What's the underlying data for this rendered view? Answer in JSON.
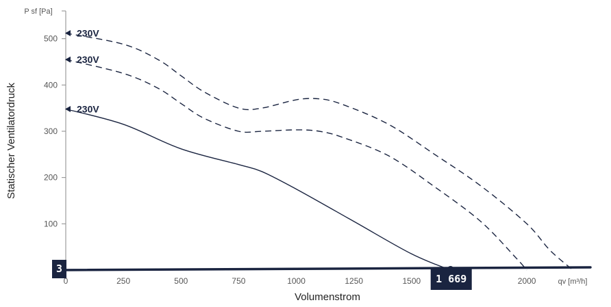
{
  "chart_data": {
    "type": "line",
    "xlabel": "Volumenstrom",
    "ylabel": "Statischer Ventilatordruck",
    "x_unit": "qv [m³/h]",
    "y_unit": "P sf [Pa]",
    "xlim": [
      0,
      2270
    ],
    "ylim": [
      0,
      560
    ],
    "x_ticks": [
      "0",
      "250",
      "500",
      "750",
      "1000",
      "1250",
      "1500",
      "2000"
    ],
    "y_ticks": [
      "0",
      "100",
      "200",
      "300",
      "400",
      "500"
    ],
    "series": [
      {
        "name": "230V",
        "style": "dashed",
        "x": [
          0,
          250,
          400,
          500,
          600,
          750,
          850,
          1000,
          1100,
          1200,
          1400,
          1600,
          1800,
          2000,
          2100,
          2200
        ],
        "y": [
          512,
          488,
          455,
          420,
          385,
          350,
          350,
          368,
          370,
          358,
          315,
          250,
          182,
          100,
          43,
          0
        ]
      },
      {
        "name": "230V",
        "style": "dashed",
        "x": [
          0,
          250,
          400,
          500,
          600,
          750,
          850,
          1000,
          1100,
          1200,
          1400,
          1600,
          1800,
          1950,
          2000
        ],
        "y": [
          455,
          425,
          393,
          360,
          328,
          300,
          300,
          303,
          300,
          287,
          247,
          180,
          105,
          28,
          0
        ]
      },
      {
        "name": "230V",
        "style": "solid",
        "x": [
          0,
          250,
          500,
          750,
          850,
          1000,
          1250,
          1500,
          1669
        ],
        "y": [
          348,
          315,
          262,
          228,
          213,
          175,
          105,
          35,
          0
        ]
      }
    ],
    "operating_point": {
      "flow": 1669,
      "pressure": 0,
      "label": "1 669"
    },
    "y_marker_label": "3",
    "colors": {
      "curve": "#1a2440",
      "badge": "#1a2440",
      "axis": "#8a8a8a"
    },
    "grid": false
  }
}
